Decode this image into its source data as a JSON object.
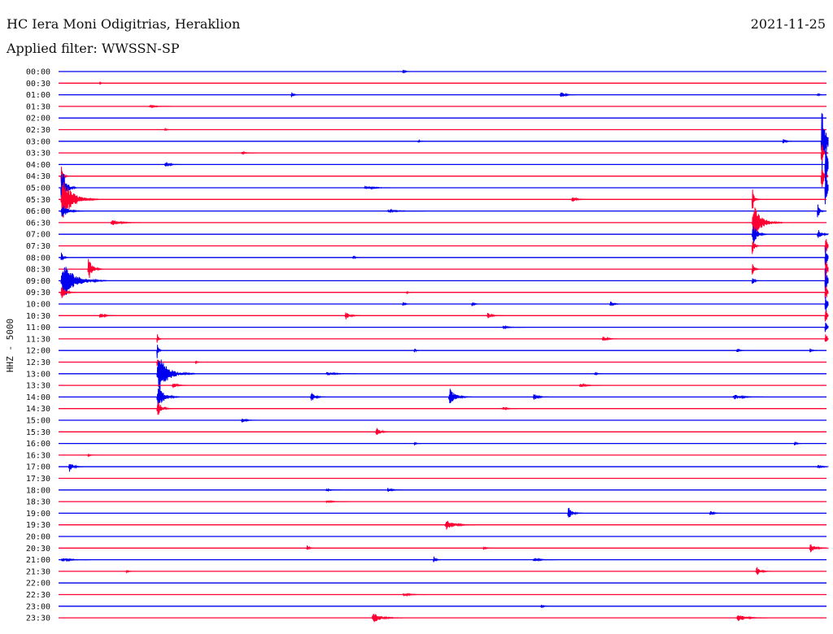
{
  "header": {
    "station": "HC Iera Moni Odigitrias, Heraklion",
    "filter": "Applied filter: WWSSN-SP",
    "date": "2021-11-25"
  },
  "colors": {
    "trace_a": "#0000ee",
    "trace_b": "#ff0033",
    "background": "#ffffff"
  },
  "chart_data": {
    "type": "line",
    "title": "HC Iera Moni Odigitrias, Heraklion",
    "subtitle": "Applied filter: WWSSN-SP",
    "ylabel": "HHZ - 5000",
    "xlabel": "",
    "trace_colors_alternate": [
      "#0000ee",
      "#ff0033"
    ],
    "rows": [
      {
        "label": "00:00",
        "events": [
          {
            "t": 0.45,
            "a": 4,
            "d": 0.01
          }
        ]
      },
      {
        "label": "00:30",
        "events": [
          {
            "t": 0.055,
            "a": 2,
            "d": 0.008
          }
        ]
      },
      {
        "label": "01:00",
        "events": [
          {
            "t": 0.305,
            "a": 5,
            "d": 0.01
          },
          {
            "t": 0.655,
            "a": 6,
            "d": 0.02
          },
          {
            "t": 0.99,
            "a": 3,
            "d": 0.01
          }
        ]
      },
      {
        "label": "01:30",
        "events": [
          {
            "t": 0.12,
            "a": 2,
            "d": 0.03
          }
        ]
      },
      {
        "label": "02:00",
        "events": []
      },
      {
        "label": "02:30",
        "events": [
          {
            "t": 0.14,
            "a": 2,
            "d": 0.01
          }
        ]
      },
      {
        "label": "03:00",
        "events": [
          {
            "t": 0.47,
            "a": 3,
            "d": 0.008
          },
          {
            "t": 0.945,
            "a": 5,
            "d": 0.012
          },
          {
            "t": 0.995,
            "a": 60,
            "d": 0.02
          }
        ]
      },
      {
        "label": "03:30",
        "events": [
          {
            "t": 0.24,
            "a": 2,
            "d": 0.02
          },
          {
            "t": 0.995,
            "a": 20,
            "d": 0.01
          }
        ]
      },
      {
        "label": "04:00",
        "events": [
          {
            "t": 0.14,
            "a": 6,
            "d": 0.02
          },
          {
            "t": 1.0,
            "a": 55,
            "d": 0.01
          }
        ]
      },
      {
        "label": "04:30",
        "events": [
          {
            "t": 0.005,
            "a": 20,
            "d": 0.01
          },
          {
            "t": 0.995,
            "a": 30,
            "d": 0.01
          }
        ]
      },
      {
        "label": "05:00",
        "events": [
          {
            "t": 0.005,
            "a": 45,
            "d": 0.02
          },
          {
            "t": 0.4,
            "a": 3,
            "d": 0.04
          },
          {
            "t": 1.0,
            "a": 40,
            "d": 0.01
          }
        ]
      },
      {
        "label": "05:30",
        "events": [
          {
            "t": 0.005,
            "a": 35,
            "d": 0.05
          },
          {
            "t": 0.67,
            "a": 5,
            "d": 0.02
          },
          {
            "t": 0.905,
            "a": 22,
            "d": 0.01
          }
        ]
      },
      {
        "label": "06:00",
        "events": [
          {
            "t": 0.005,
            "a": 12,
            "d": 0.03
          },
          {
            "t": 0.43,
            "a": 2,
            "d": 0.05
          },
          {
            "t": 0.99,
            "a": 15,
            "d": 0.01
          }
        ]
      },
      {
        "label": "06:30",
        "events": [
          {
            "t": 0.07,
            "a": 5,
            "d": 0.04
          },
          {
            "t": 0.905,
            "a": 30,
            "d": 0.04
          }
        ]
      },
      {
        "label": "07:00",
        "events": [
          {
            "t": 0.905,
            "a": 22,
            "d": 0.02
          },
          {
            "t": 0.99,
            "a": 8,
            "d": 0.02
          }
        ]
      },
      {
        "label": "07:30",
        "events": [
          {
            "t": 0.905,
            "a": 18,
            "d": 0.01
          },
          {
            "t": 1.0,
            "a": 20,
            "d": 0.01
          }
        ]
      },
      {
        "label": "08:00",
        "events": [
          {
            "t": 0.005,
            "a": 10,
            "d": 0.01
          },
          {
            "t": 0.385,
            "a": 3,
            "d": 0.01
          },
          {
            "t": 1.0,
            "a": 25,
            "d": 0.01
          }
        ]
      },
      {
        "label": "08:30",
        "events": [
          {
            "t": 0.04,
            "a": 20,
            "d": 0.02
          },
          {
            "t": 0.905,
            "a": 12,
            "d": 0.01
          },
          {
            "t": 1.0,
            "a": 25,
            "d": 0.01
          }
        ]
      },
      {
        "label": "09:00",
        "events": [
          {
            "t": 0.005,
            "a": 30,
            "d": 0.06
          },
          {
            "t": 0.905,
            "a": 8,
            "d": 0.01
          },
          {
            "t": 1.0,
            "a": 25,
            "d": 0.01
          }
        ]
      },
      {
        "label": "09:30",
        "events": [
          {
            "t": 0.005,
            "a": 12,
            "d": 0.02
          },
          {
            "t": 0.455,
            "a": 3,
            "d": 0.005
          },
          {
            "t": 1.0,
            "a": 20,
            "d": 0.01
          }
        ]
      },
      {
        "label": "10:00",
        "events": [
          {
            "t": 0.45,
            "a": 4,
            "d": 0.01
          },
          {
            "t": 0.54,
            "a": 5,
            "d": 0.01
          },
          {
            "t": 0.72,
            "a": 5,
            "d": 0.015
          },
          {
            "t": 1.0,
            "a": 20,
            "d": 0.01
          }
        ]
      },
      {
        "label": "10:30",
        "events": [
          {
            "t": 0.055,
            "a": 5,
            "d": 0.02
          },
          {
            "t": 0.375,
            "a": 7,
            "d": 0.02
          },
          {
            "t": 0.56,
            "a": 5,
            "d": 0.02
          },
          {
            "t": 1.0,
            "a": 15,
            "d": 0.01
          }
        ]
      },
      {
        "label": "11:00",
        "events": [
          {
            "t": 0.58,
            "a": 2,
            "d": 0.03
          },
          {
            "t": 1.0,
            "a": 15,
            "d": 0.01
          }
        ]
      },
      {
        "label": "11:30",
        "events": [
          {
            "t": 0.13,
            "a": 12,
            "d": 0.005
          },
          {
            "t": 0.71,
            "a": 5,
            "d": 0.02
          },
          {
            "t": 1.0,
            "a": 12,
            "d": 0.01
          }
        ]
      },
      {
        "label": "12:00",
        "events": [
          {
            "t": 0.13,
            "a": 18,
            "d": 0.005
          },
          {
            "t": 0.465,
            "a": 5,
            "d": 0.005
          },
          {
            "t": 0.885,
            "a": 6,
            "d": 0.01
          },
          {
            "t": 0.98,
            "a": 4,
            "d": 0.01
          }
        ]
      },
      {
        "label": "12:30",
        "events": [
          {
            "t": 0.13,
            "a": 12,
            "d": 0.005
          },
          {
            "t": 0.18,
            "a": 2,
            "d": 0.01
          }
        ]
      },
      {
        "label": "13:00",
        "events": [
          {
            "t": 0.13,
            "a": 30,
            "d": 0.05
          },
          {
            "t": 0.35,
            "a": 3,
            "d": 0.04
          },
          {
            "t": 0.7,
            "a": 3,
            "d": 0.01
          }
        ]
      },
      {
        "label": "13:30",
        "events": [
          {
            "t": 0.15,
            "a": 5,
            "d": 0.02
          },
          {
            "t": 0.68,
            "a": 3,
            "d": 0.03
          }
        ]
      },
      {
        "label": "14:00",
        "events": [
          {
            "t": 0.13,
            "a": 20,
            "d": 0.03
          },
          {
            "t": 0.33,
            "a": 8,
            "d": 0.02
          },
          {
            "t": 0.51,
            "a": 14,
            "d": 0.03
          },
          {
            "t": 0.62,
            "a": 6,
            "d": 0.02
          },
          {
            "t": 0.88,
            "a": 4,
            "d": 0.04
          }
        ]
      },
      {
        "label": "14:30",
        "events": [
          {
            "t": 0.13,
            "a": 14,
            "d": 0.02
          },
          {
            "t": 0.58,
            "a": 3,
            "d": 0.02
          }
        ]
      },
      {
        "label": "15:00",
        "events": [
          {
            "t": 0.24,
            "a": 4,
            "d": 0.02
          }
        ]
      },
      {
        "label": "15:30",
        "events": [
          {
            "t": 0.415,
            "a": 8,
            "d": 0.02
          }
        ]
      },
      {
        "label": "16:00",
        "events": [
          {
            "t": 0.465,
            "a": 3,
            "d": 0.01
          },
          {
            "t": 0.96,
            "a": 4,
            "d": 0.01
          }
        ]
      },
      {
        "label": "16:30",
        "events": [
          {
            "t": 0.04,
            "a": 2,
            "d": 0.01
          }
        ]
      },
      {
        "label": "17:00",
        "events": [
          {
            "t": 0.015,
            "a": 9,
            "d": 0.02
          },
          {
            "t": 0.99,
            "a": 3,
            "d": 0.02
          }
        ]
      },
      {
        "label": "17:30",
        "events": []
      },
      {
        "label": "18:00",
        "events": [
          {
            "t": 0.35,
            "a": 2,
            "d": 0.02
          },
          {
            "t": 0.43,
            "a": 4,
            "d": 0.02
          }
        ]
      },
      {
        "label": "18:30",
        "events": [
          {
            "t": 0.35,
            "a": 2,
            "d": 0.03
          }
        ]
      },
      {
        "label": "19:00",
        "events": [
          {
            "t": 0.665,
            "a": 10,
            "d": 0.02
          },
          {
            "t": 0.85,
            "a": 5,
            "d": 0.015
          }
        ]
      },
      {
        "label": "19:30",
        "events": [
          {
            "t": 0.505,
            "a": 8,
            "d": 0.04
          }
        ]
      },
      {
        "label": "20:00",
        "events": []
      },
      {
        "label": "20:30",
        "events": [
          {
            "t": 0.325,
            "a": 5,
            "d": 0.01
          },
          {
            "t": 0.555,
            "a": 4,
            "d": 0.01
          },
          {
            "t": 0.98,
            "a": 8,
            "d": 0.025
          }
        ]
      },
      {
        "label": "21:00",
        "events": [
          {
            "t": 0.005,
            "a": 3,
            "d": 0.04
          },
          {
            "t": 0.49,
            "a": 7,
            "d": 0.01
          },
          {
            "t": 0.62,
            "a": 3,
            "d": 0.03
          }
        ]
      },
      {
        "label": "21:30",
        "events": [
          {
            "t": 0.09,
            "a": 3,
            "d": 0.01
          },
          {
            "t": 0.91,
            "a": 8,
            "d": 0.02
          }
        ]
      },
      {
        "label": "22:00",
        "events": []
      },
      {
        "label": "22:30",
        "events": [
          {
            "t": 0.45,
            "a": 2,
            "d": 0.04
          }
        ]
      },
      {
        "label": "23:00",
        "events": [
          {
            "t": 0.63,
            "a": 5,
            "d": 0.01
          }
        ]
      },
      {
        "label": "23:30",
        "events": [
          {
            "t": 0.41,
            "a": 8,
            "d": 0.04
          },
          {
            "t": 0.885,
            "a": 6,
            "d": 0.04
          }
        ]
      }
    ]
  }
}
